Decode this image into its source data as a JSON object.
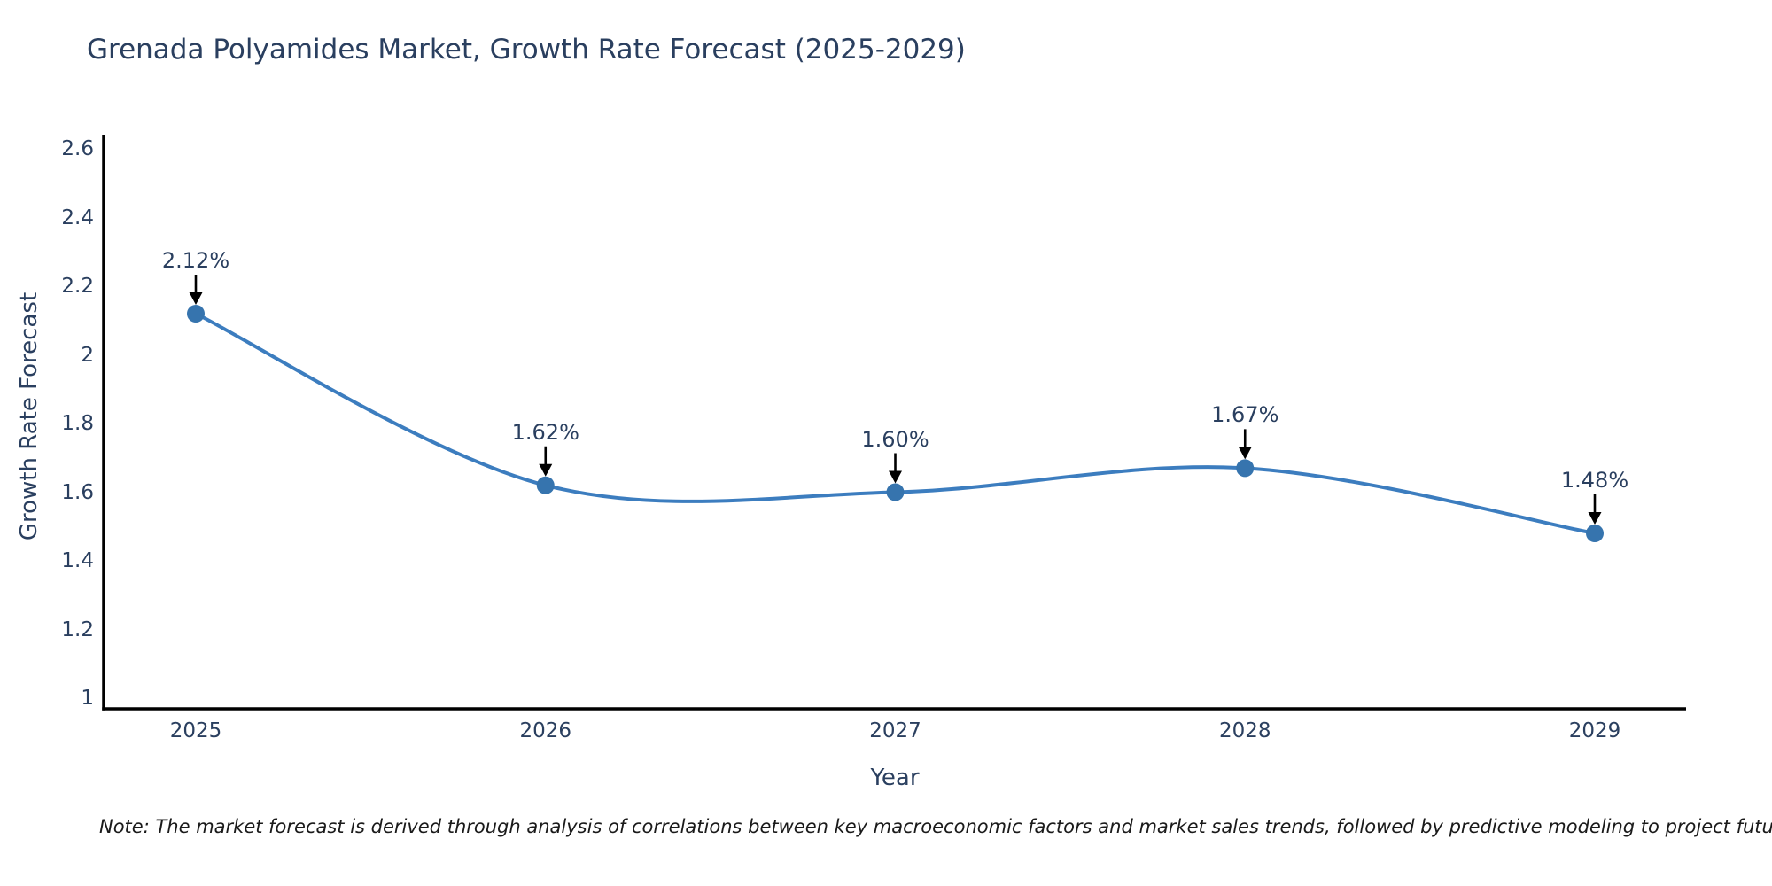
{
  "title": "Grenada Polyamides Market, Growth Rate Forecast (2025-2029)",
  "note": "Note: The market forecast is derived through analysis of correlations between key macroeconomic factors and market sales trends, followed by predictive modeling to project future sales",
  "chart_data": {
    "type": "line",
    "title": "Grenada Polyamides Market, Growth Rate Forecast (2025-2029)",
    "xlabel": "Year",
    "ylabel": "Growth Rate Forecast",
    "x": [
      2025,
      2026,
      2027,
      2028,
      2029
    ],
    "values": [
      2.12,
      1.62,
      1.6,
      1.67,
      1.48
    ],
    "point_labels": [
      "2.12%",
      "1.62%",
      "1.60%",
      "1.67%",
      "1.48%"
    ],
    "yticks": [
      1,
      1.2,
      1.4,
      1.6,
      1.8,
      2,
      2.2,
      2.4,
      2.6
    ],
    "ytick_labels": [
      "1",
      "1.2",
      "1.4",
      "1.6",
      "1.8",
      "2",
      "2.2",
      "2.4",
      "2.6"
    ],
    "xtick_labels": [
      "2025",
      "2026",
      "2027",
      "2028",
      "2029"
    ],
    "ylim": [
      1,
      2.6
    ],
    "grid": false,
    "legend": "none",
    "line_shape": "spline",
    "annotation_arrows": true,
    "colors": {
      "line": "#3c7dbf",
      "marker": "#3674ae",
      "text": "#2a3f5f",
      "axis": "#000000",
      "arrow": "#000000",
      "background": "#ffffff"
    }
  }
}
